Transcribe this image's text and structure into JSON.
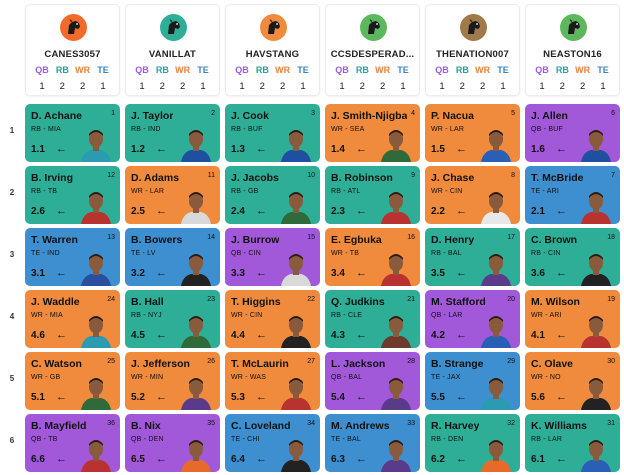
{
  "position_labels": [
    "QB",
    "RB",
    "WR",
    "TE"
  ],
  "position_colors": {
    "QB": "#9b5de5",
    "RB": "#2aa198",
    "WR": "#e8833a",
    "TE": "#3b86c6"
  },
  "pick_colors": {
    "QB": "#a259d9",
    "RB": "#2fae97",
    "WR": "#f08a3c",
    "TE": "#3e8fd0"
  },
  "teams": [
    {
      "name": "CANES3057",
      "avatar_bg": "#f26b2b",
      "avatar_icon": "dog-icon",
      "counts": [
        "1",
        "2",
        "2",
        "1"
      ]
    },
    {
      "name": "VANILLAT",
      "avatar_bg": "#2fae97",
      "avatar_icon": "dog-icon",
      "counts": [
        "1",
        "2",
        "2",
        "1"
      ]
    },
    {
      "name": "HAVSTANG",
      "avatar_bg": "#f08a3c",
      "avatar_icon": "dog-icon",
      "counts": [
        "1",
        "2",
        "2",
        "1"
      ]
    },
    {
      "name": "CCSDESPERAD...",
      "avatar_bg": "#5cb85c",
      "avatar_icon": "dog-icon",
      "counts": [
        "1",
        "2",
        "2",
        "1"
      ]
    },
    {
      "name": "THENATION007",
      "avatar_bg": "#a07a4a",
      "avatar_icon": "dog-icon",
      "counts": [
        "1",
        "2",
        "2",
        "1"
      ]
    },
    {
      "name": "NEASTON16",
      "avatar_bg": "#5cb85c",
      "avatar_icon": "dog-icon",
      "counts": [
        "1",
        "2",
        "2",
        "1"
      ]
    }
  ],
  "rounds": [
    {
      "label": "1",
      "picks": [
        {
          "name": "D. Achane",
          "pos": "RB",
          "meta": "RB - MIA",
          "num": "1",
          "ord": "1.1"
        },
        {
          "name": "J. Taylor",
          "pos": "RB",
          "meta": "RB - IND",
          "num": "2",
          "ord": "1.2"
        },
        {
          "name": "J. Cook",
          "pos": "RB",
          "meta": "RB - BUF",
          "num": "3",
          "ord": "1.3"
        },
        {
          "name": "J. Smith-Njigba",
          "pos": "WR",
          "meta": "WR - SEA",
          "num": "4",
          "ord": "1.4"
        },
        {
          "name": "P. Nacua",
          "pos": "WR",
          "meta": "WR - LAR",
          "num": "5",
          "ord": "1.5"
        },
        {
          "name": "J. Allen",
          "pos": "QB",
          "meta": "QB - BUF",
          "num": "6",
          "ord": "1.6"
        }
      ]
    },
    {
      "label": "2",
      "picks": [
        {
          "name": "B. Irving",
          "pos": "RB",
          "meta": "RB - TB",
          "num": "12",
          "ord": "2.6"
        },
        {
          "name": "D. Adams",
          "pos": "WR",
          "meta": "WR - LAR",
          "num": "11",
          "ord": "2.5"
        },
        {
          "name": "J. Jacobs",
          "pos": "RB",
          "meta": "RB - GB",
          "num": "10",
          "ord": "2.4"
        },
        {
          "name": "B. Robinson",
          "pos": "RB",
          "meta": "RB - ATL",
          "num": "9",
          "ord": "2.3"
        },
        {
          "name": "J. Chase",
          "pos": "WR",
          "meta": "WR - CIN",
          "num": "8",
          "ord": "2.2"
        },
        {
          "name": "T. McBride",
          "pos": "TE",
          "meta": "TE - ARI",
          "num": "7",
          "ord": "2.1"
        }
      ]
    },
    {
      "label": "3",
      "picks": [
        {
          "name": "T. Warren",
          "pos": "TE",
          "meta": "TE - IND",
          "num": "13",
          "ord": "3.1"
        },
        {
          "name": "B. Bowers",
          "pos": "TE",
          "meta": "TE - LV",
          "num": "14",
          "ord": "3.2"
        },
        {
          "name": "J. Burrow",
          "pos": "QB",
          "meta": "QB - CIN",
          "num": "15",
          "ord": "3.3"
        },
        {
          "name": "E. Egbuka",
          "pos": "WR",
          "meta": "WR - TB",
          "num": "16",
          "ord": "3.4"
        },
        {
          "name": "D. Henry",
          "pos": "RB",
          "meta": "RB - BAL",
          "num": "17",
          "ord": "3.5"
        },
        {
          "name": "C. Brown",
          "pos": "RB",
          "meta": "RB - CIN",
          "num": "18",
          "ord": "3.6"
        }
      ]
    },
    {
      "label": "4",
      "picks": [
        {
          "name": "J. Waddle",
          "pos": "WR",
          "meta": "WR - MIA",
          "num": "24",
          "ord": "4.6"
        },
        {
          "name": "B. Hall",
          "pos": "RB",
          "meta": "RB - NYJ",
          "num": "23",
          "ord": "4.5"
        },
        {
          "name": "T. Higgins",
          "pos": "WR",
          "meta": "WR - CIN",
          "num": "22",
          "ord": "4.4"
        },
        {
          "name": "Q. Judkins",
          "pos": "RB",
          "meta": "RB - CLE",
          "num": "21",
          "ord": "4.3"
        },
        {
          "name": "M. Stafford",
          "pos": "QB",
          "meta": "QB - LAR",
          "num": "20",
          "ord": "4.2"
        },
        {
          "name": "M. Wilson",
          "pos": "WR",
          "meta": "WR - ARI",
          "num": "19",
          "ord": "4.1"
        }
      ]
    },
    {
      "label": "5",
      "picks": [
        {
          "name": "C. Watson",
          "pos": "WR",
          "meta": "WR - GB",
          "num": "25",
          "ord": "5.1"
        },
        {
          "name": "J. Jefferson",
          "pos": "WR",
          "meta": "WR - MIN",
          "num": "26",
          "ord": "5.2"
        },
        {
          "name": "T. McLaurin",
          "pos": "WR",
          "meta": "WR - WAS",
          "num": "27",
          "ord": "5.3"
        },
        {
          "name": "L. Jackson",
          "pos": "QB",
          "meta": "QB - BAL",
          "num": "28",
          "ord": "5.4"
        },
        {
          "name": "B. Strange",
          "pos": "TE",
          "meta": "TE - JAX",
          "num": "29",
          "ord": "5.5"
        },
        {
          "name": "C. Olave",
          "pos": "WR",
          "meta": "WR - NO",
          "num": "30",
          "ord": "5.6"
        }
      ]
    },
    {
      "label": "6",
      "picks": [
        {
          "name": "B. Mayfield",
          "pos": "QB",
          "meta": "QB - TB",
          "num": "36",
          "ord": "6.6"
        },
        {
          "name": "B. Nix",
          "pos": "QB",
          "meta": "QB - DEN",
          "num": "35",
          "ord": "6.5"
        },
        {
          "name": "C. Loveland",
          "pos": "TE",
          "meta": "TE - CHI",
          "num": "34",
          "ord": "6.4"
        },
        {
          "name": "M. Andrews",
          "pos": "TE",
          "meta": "TE - BAL",
          "num": "33",
          "ord": "6.3"
        },
        {
          "name": "R. Harvey",
          "pos": "RB",
          "meta": "RB - DEN",
          "num": "32",
          "ord": "6.2"
        },
        {
          "name": "K. Williams",
          "pos": "RB",
          "meta": "RB - LAR",
          "num": "31",
          "ord": "6.1"
        }
      ]
    }
  ],
  "arrow_glyph": "←",
  "jersey_colors": [
    [
      "#2a9bb0",
      "#1f4fa0",
      "#1f4fa0",
      "#2f6b3a",
      "#2a5fb8",
      "#1f4fa0"
    ],
    [
      "#b8332f",
      "#d9d9d9",
      "#2f6b3a",
      "#b8332f",
      "#e8e8e8",
      "#b8332f"
    ],
    [
      "#2a4fa0",
      "#222222",
      "#d9d9d9",
      "#b8332f",
      "#5a3a8a",
      "#222222"
    ],
    [
      "#2a9bb0",
      "#2f6b3a",
      "#222222",
      "#6b3a2a",
      "#2a5fb8",
      "#b8332f"
    ],
    [
      "#2f6b3a",
      "#5a3a8a",
      "#b8332f",
      "#5a3a8a",
      "#2a9bb0",
      "#222222"
    ],
    [
      "#b8332f",
      "#e86a2a",
      "#222222",
      "#5a3a8a",
      "#e86a2a",
      "#2a5fb8"
    ]
  ]
}
